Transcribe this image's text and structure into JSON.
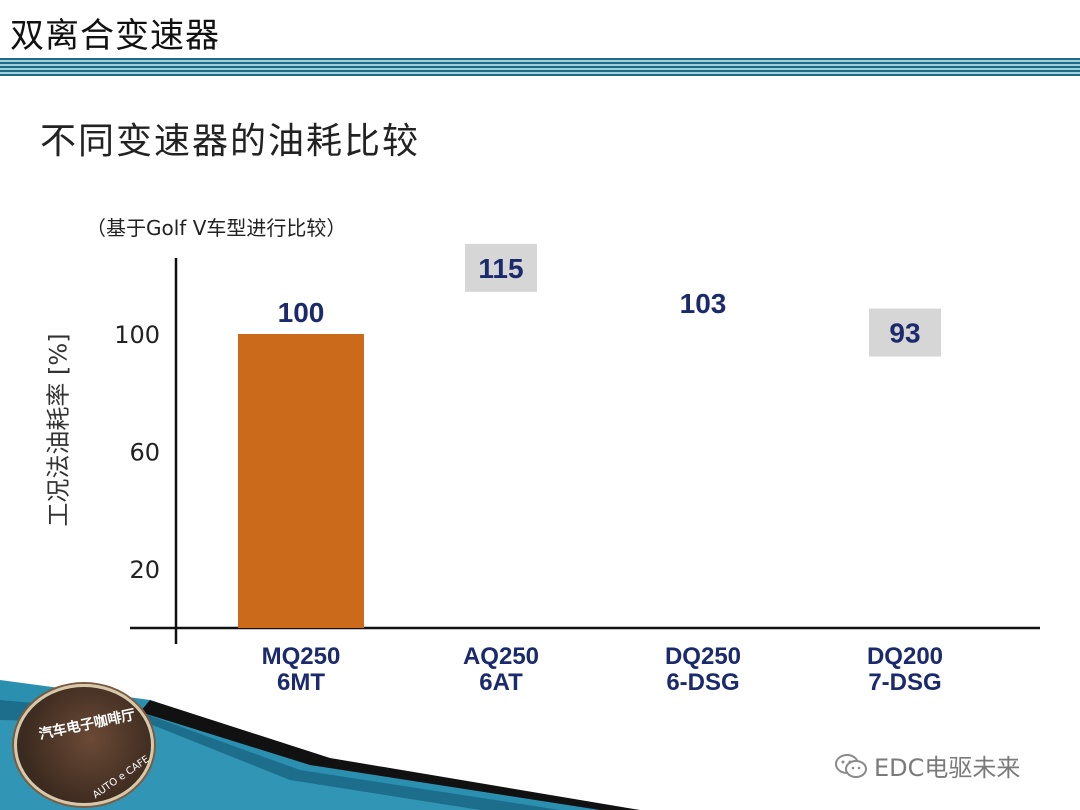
{
  "slide": {
    "title": "双离合变速器",
    "subtitle": "不同变速器的油耗比较",
    "note": "（基于Golf V车型进行比较）"
  },
  "chart_data": {
    "type": "bar",
    "ylabel": "工况法油耗率 [%]",
    "yticks": [
      20,
      60,
      100
    ],
    "ylim": [
      0,
      120
    ],
    "categories": [
      {
        "line1": "MQ250",
        "line2": "6MT"
      },
      {
        "line1": "AQ250",
        "line2": "6AT"
      },
      {
        "line1": "DQ250",
        "line2": "6-DSG"
      },
      {
        "line1": "DQ200",
        "line2": "7-DSG"
      }
    ],
    "values": [
      100,
      115,
      103,
      93
    ],
    "value_labels": [
      "100",
      "115",
      "103",
      "93"
    ],
    "bar_visible": [
      true,
      false,
      false,
      false
    ],
    "label_boxed": [
      false,
      true,
      false,
      true
    ],
    "colors": {
      "bar": "#cc6a1c",
      "label_text": "#1a2a6c",
      "label_box": "#d6d6d6",
      "axis": "#111111"
    }
  },
  "logo": {
    "text": "汽车电子咖啡厅",
    "sub": "AUTO e CAFE"
  },
  "watermark": {
    "text": "EDC电驱未来",
    "icon": "wechat-icon"
  }
}
